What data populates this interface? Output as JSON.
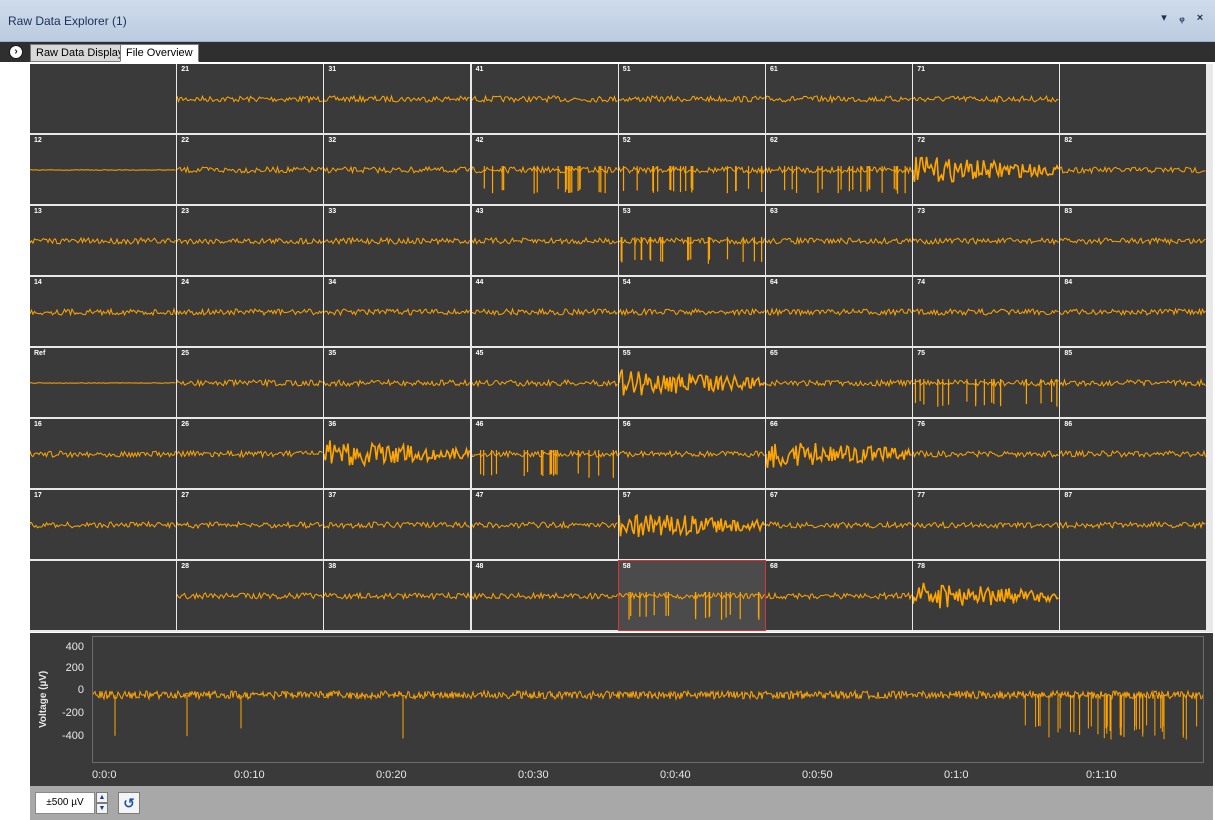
{
  "window": {
    "title": "Raw Data Explorer (1)",
    "pin_icon": "pin-icon",
    "close_icon": "close-icon",
    "menu_icon": "dropdown-icon"
  },
  "tabs": [
    {
      "label": "Raw Data Display",
      "active": false
    },
    {
      "label": "File Overview",
      "active": true
    }
  ],
  "colors": {
    "trace": "#ffa500",
    "cell_bg": "#3a3a3a",
    "grid_line": "#e8e8e8",
    "selected_border": "#d6333a"
  },
  "grid": {
    "rows": [
      [
        "",
        "21",
        "31",
        "41",
        "51",
        "61",
        "71",
        ""
      ],
      [
        "12",
        "22",
        "32",
        "42",
        "52",
        "62",
        "72",
        "82"
      ],
      [
        "13",
        "23",
        "33",
        "43",
        "53",
        "63",
        "73",
        "83"
      ],
      [
        "14",
        "24",
        "34",
        "44",
        "54",
        "64",
        "74",
        "84"
      ],
      [
        "Ref",
        "25",
        "35",
        "45",
        "55",
        "65",
        "75",
        "85"
      ],
      [
        "16",
        "26",
        "36",
        "46",
        "56",
        "66",
        "76",
        "86"
      ],
      [
        "17",
        "27",
        "37",
        "47",
        "57",
        "67",
        "77",
        "87"
      ],
      [
        "",
        "28",
        "38",
        "48",
        "58",
        "68",
        "78",
        ""
      ]
    ],
    "selected": "58"
  },
  "detail_plot": {
    "y_label": "Voltage (µV)",
    "y_ticks": [
      "400",
      "200",
      "0",
      "-200",
      "-400"
    ],
    "x_ticks": [
      "0:0:0",
      "0:0:10",
      "0:0:20",
      "0:0:30",
      "0:0:40",
      "0:0:50",
      "0:1:0",
      "0:1:10"
    ]
  },
  "toolbar": {
    "scale_value": "±500 µV",
    "up_icon": "spin-up-icon",
    "down_icon": "spin-down-icon",
    "reset_icon": "undo-icon"
  }
}
